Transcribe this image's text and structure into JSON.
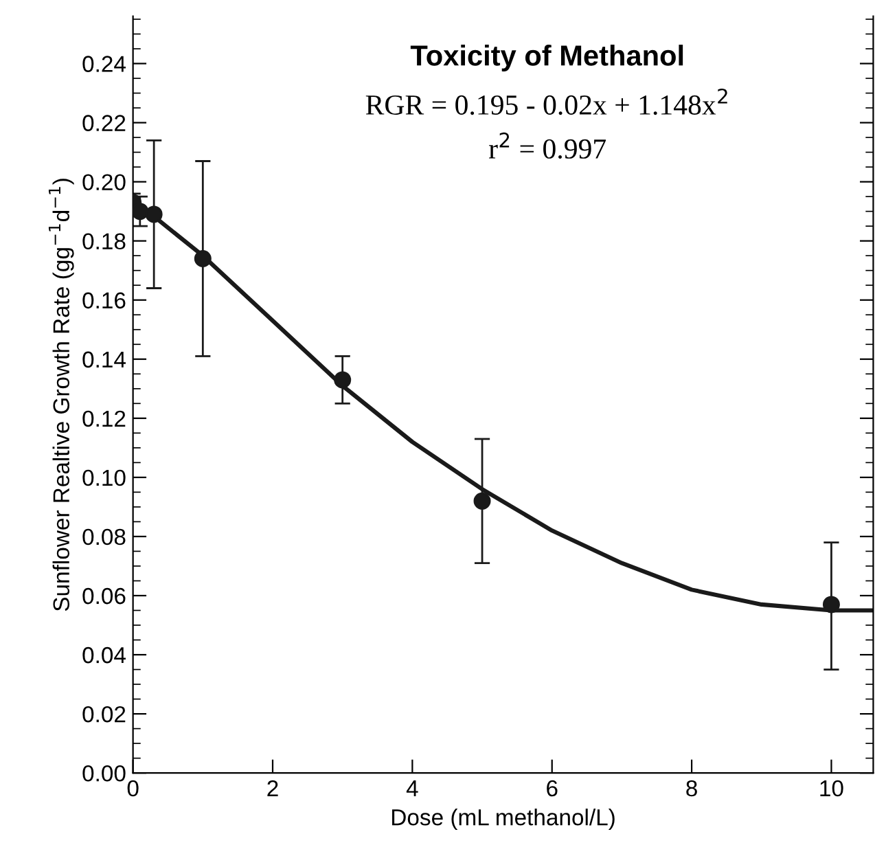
{
  "chart_data": {
    "type": "scatter",
    "title": "Toxicity of Methanol",
    "xlabel": "Dose (mL methanol/L)",
    "ylabel": "Sunflower Realtive Growth Rate (gg$^{−1}$d$^{−1}$)",
    "annotations": [
      "RGR = 0.195 - 0.02x + 1.148x$^{2}$",
      "r$^{2}$ = 0.997"
    ],
    "series": [
      {
        "color": "#1a1a1a",
        "marker": "circle",
        "x": [
          0,
          0.1,
          0.3,
          1,
          3,
          5,
          10
        ],
        "values": [
          0.193,
          0.19,
          0.189,
          0.174,
          0.133,
          0.092,
          0.057
        ],
        "errors": [
          [
            0.19,
            0.196
          ],
          [
            0.185,
            0.195
          ],
          [
            0.164,
            0.214
          ],
          [
            0.141,
            0.207
          ],
          [
            0.125,
            0.141
          ],
          [
            0.071,
            0.113
          ],
          [
            0.035,
            0.078
          ]
        ]
      },
      {
        "type": "line",
        "color": "#1a1a1a",
        "marker": "none",
        "line_style": "solid",
        "x": [
          0,
          1,
          2,
          3,
          4,
          5,
          6,
          7,
          8,
          9,
          10,
          10.6
        ],
        "values": [
          0.194,
          0.175,
          0.153,
          0.131,
          0.112,
          0.096,
          0.082,
          0.071,
          0.062,
          0.057,
          0.055,
          0.055
        ]
      }
    ],
    "xlim": [
      0,
      10.6
    ],
    "xticks": [
      0,
      2,
      4,
      6,
      8,
      10
    ],
    "ylim": [
      0,
      0.256
    ],
    "yticks": [
      {
        "value": 0,
        "label": "0.00"
      },
      {
        "value": 0.01,
        "label": null
      },
      {
        "value": 0.02,
        "label": "0.02"
      },
      {
        "value": 0.03,
        "label": null
      },
      {
        "value": 0.04,
        "label": "0.04"
      },
      {
        "value": 0.05,
        "label": null
      },
      {
        "value": 0.06,
        "label": "0.06"
      },
      {
        "value": 0.07,
        "label": null
      },
      {
        "value": 0.08,
        "label": "0.08"
      },
      {
        "value": 0.09,
        "label": null
      },
      {
        "value": 0.1,
        "label": "0.10"
      },
      {
        "value": 0.11,
        "label": null
      },
      {
        "value": 0.12,
        "label": "0.12"
      },
      {
        "value": 0.13,
        "label": null
      },
      {
        "value": 0.14,
        "label": "0.14"
      },
      {
        "value": 0.15,
        "label": null
      },
      {
        "value": 0.16,
        "label": "0.16"
      },
      {
        "value": 0.17,
        "label": null
      },
      {
        "value": 0.18,
        "label": "0.18"
      },
      {
        "value": 0.19,
        "label": null
      },
      {
        "value": 0.2,
        "label": "0.20"
      },
      {
        "value": 0.21,
        "label": null
      },
      {
        "value": 0.22,
        "label": "0.22"
      },
      {
        "value": 0.23,
        "label": null
      },
      {
        "value": 0.24,
        "label": "0.24"
      },
      {
        "value": 0.25,
        "label": null
      }
    ],
    "grid": false,
    "legend": false
  }
}
